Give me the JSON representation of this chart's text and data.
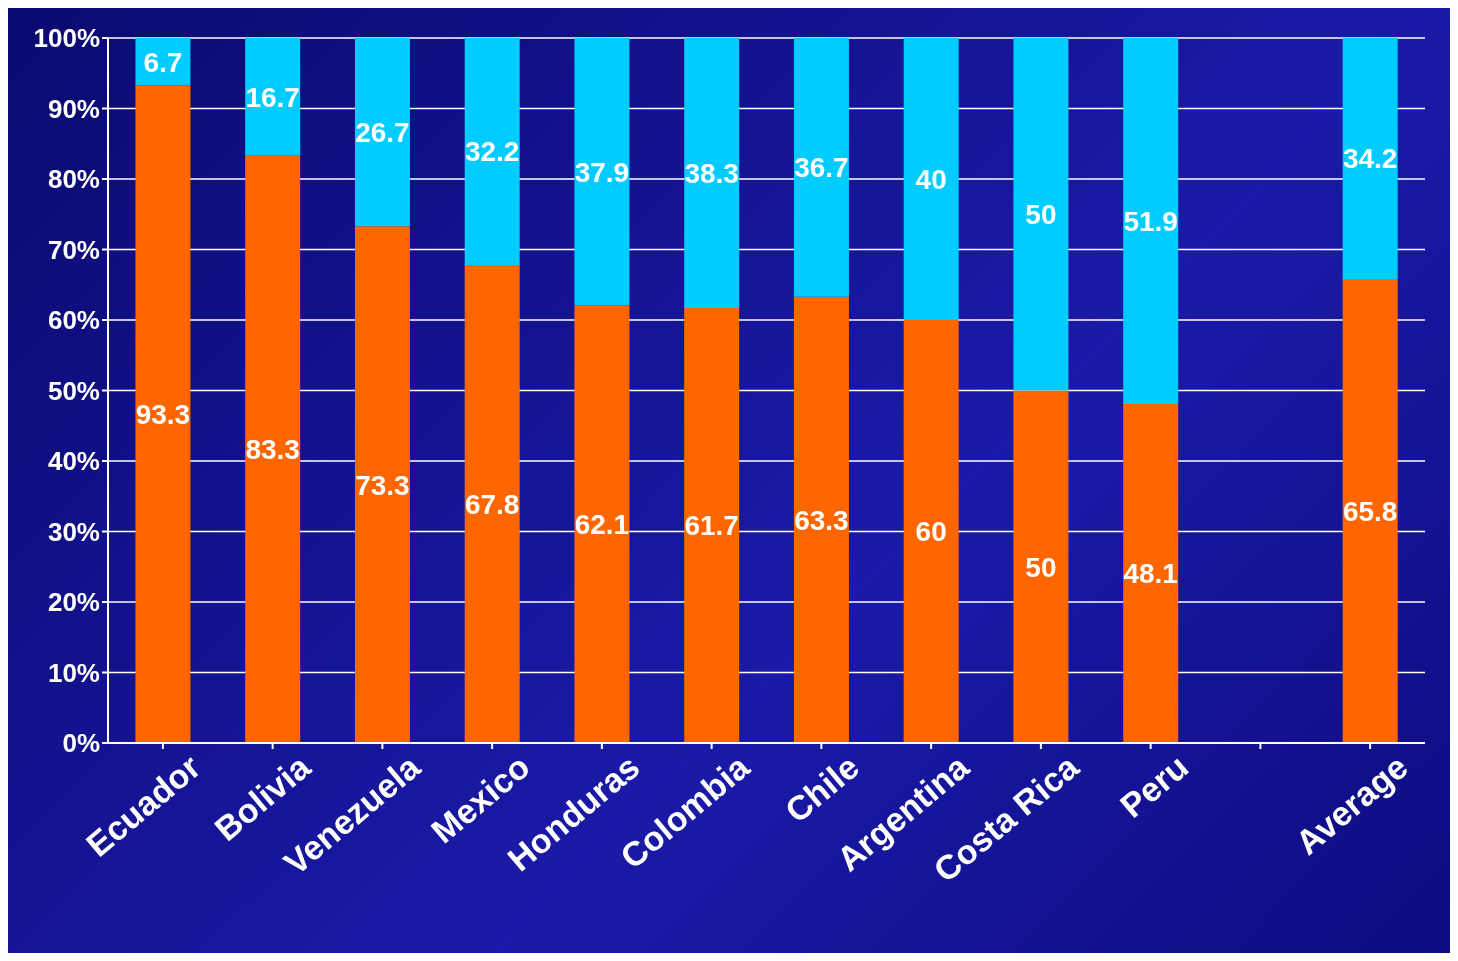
{
  "chart_data": {
    "type": "bar",
    "stacked": true,
    "categories": [
      "Ecuador",
      "Bolivia",
      "Venezuela",
      "Mexico",
      "Honduras",
      "Colombia",
      "Chile",
      "Argentina",
      "Costa Rica",
      "Peru",
      null,
      "Average"
    ],
    "series": [
      {
        "color": "#ff6600",
        "values": [
          93.3,
          83.3,
          73.3,
          67.8,
          62.1,
          61.7,
          63.3,
          60,
          50,
          48.1,
          null,
          65.8
        ]
      },
      {
        "color": "#00ccff",
        "values": [
          6.7,
          16.7,
          26.7,
          32.2,
          37.9,
          38.3,
          36.7,
          40,
          50,
          51.9,
          null,
          34.2
        ]
      }
    ],
    "ylim": [
      0,
      100
    ],
    "yticks": [
      {
        "value": 0,
        "label": "0%"
      },
      {
        "value": 10,
        "label": "10%"
      },
      {
        "value": 20,
        "label": "20%"
      },
      {
        "value": 30,
        "label": "30%"
      },
      {
        "value": 40,
        "label": "40%"
      },
      {
        "value": 50,
        "label": "50%"
      },
      {
        "value": 60,
        "label": "60%"
      },
      {
        "value": 70,
        "label": "70%"
      },
      {
        "value": 80,
        "label": "80%"
      },
      {
        "value": 90,
        "label": "90%"
      },
      {
        "value": 100,
        "label": "100%"
      }
    ],
    "grid": "y",
    "data_labels": true
  }
}
